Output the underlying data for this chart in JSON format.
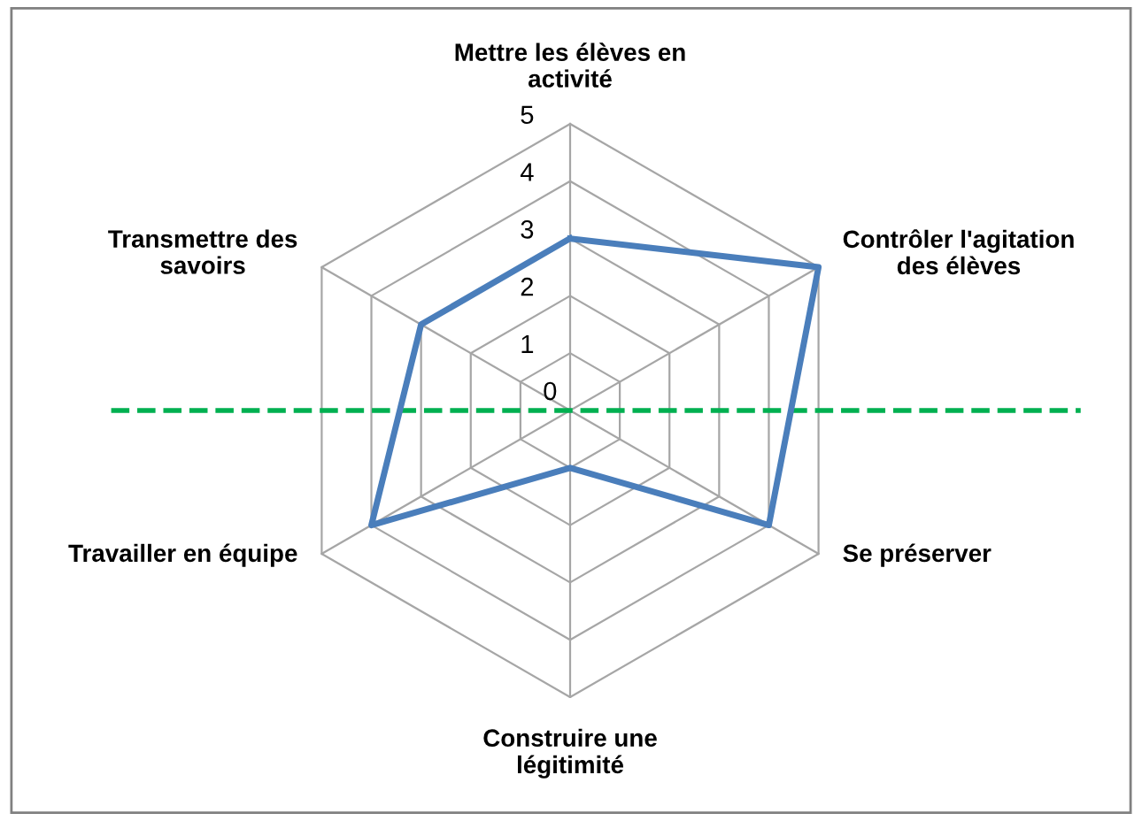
{
  "chart_data": {
    "type": "radar",
    "categories": [
      "Mettre les élèves en\nactivité",
      "Contrôler l'agitation\ndes élèves",
      "Se préserver",
      "Construire une\nlégitimité",
      "Travailler en équipe",
      "Transmettre des\nsavoirs"
    ],
    "series": [
      {
        "color": "#4a7ebb",
        "values": [
          3,
          5,
          4,
          1,
          4,
          3
        ]
      }
    ],
    "ylim": [
      0,
      5
    ],
    "yticks": [
      0,
      1,
      2,
      3,
      4,
      5
    ],
    "grid": true,
    "legend": false,
    "marker": "none",
    "line_style": "solid",
    "ref_lines": [
      {
        "axis": "y",
        "color": "#00b050",
        "line_style": "dashed"
      }
    ]
  }
}
